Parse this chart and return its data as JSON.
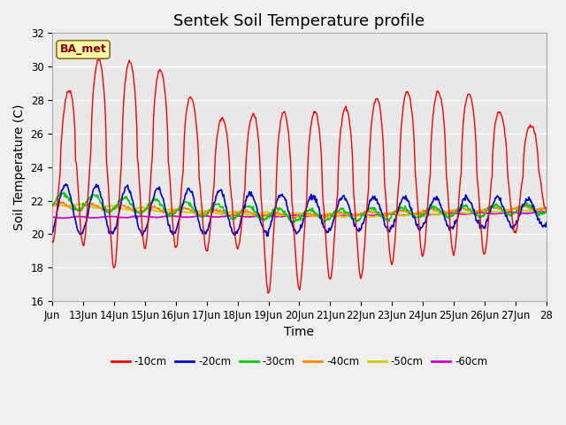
{
  "title": "Sentek Soil Temperature profile",
  "xlabel": "Time",
  "ylabel": "Soil Temperature (C)",
  "ylim": [
    16,
    32
  ],
  "annotation": "BA_met",
  "legend_labels": [
    "-10cm",
    "-20cm",
    "-30cm",
    "-40cm",
    "-50cm",
    "-60cm"
  ],
  "legend_colors": [
    "#ff0000",
    "#0000cc",
    "#00cc00",
    "#ff8800",
    "#cccc00",
    "#cc00cc"
  ],
  "xtick_labels": [
    "Jun",
    "13Jun",
    "14Jun",
    "15Jun",
    "16Jun",
    "17Jun",
    "18Jun",
    "19Jun",
    "20Jun",
    "21Jun",
    "22Jun",
    "23Jun",
    "24Jun",
    "25Jun",
    "26Jun",
    "27Jun",
    "28"
  ],
  "background_color": "#e8e8e8",
  "fig_background": "#f0f0f0",
  "title_fontsize": 13,
  "axis_fontsize": 10,
  "tick_fontsize": 8.5
}
